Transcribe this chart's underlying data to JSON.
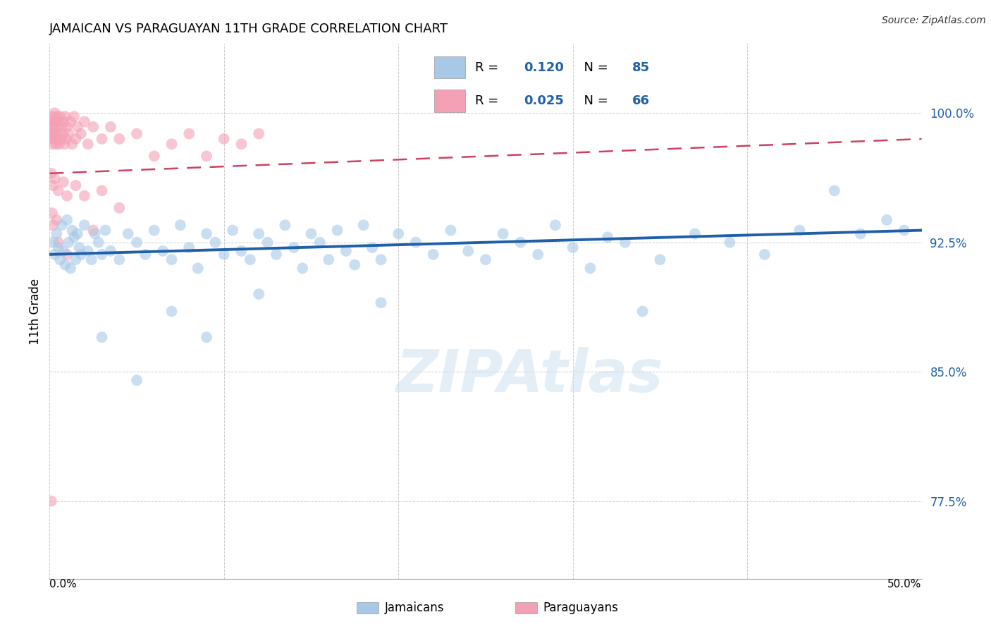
{
  "title": "JAMAICAN VS PARAGUAYAN 11TH GRADE CORRELATION CHART",
  "source": "Source: ZipAtlas.com",
  "ylabel": "11th Grade",
  "y_ticks": [
    77.5,
    85.0,
    92.5,
    100.0
  ],
  "y_tick_labels": [
    "77.5%",
    "85.0%",
    "92.5%",
    "100.0%"
  ],
  "xlim": [
    0.0,
    50.0
  ],
  "ylim": [
    73.0,
    104.0
  ],
  "jamaican_R": 0.12,
  "jamaican_N": 85,
  "paraguayan_R": 0.025,
  "paraguayan_N": 66,
  "jamaican_color": "#a8c8e8",
  "paraguayan_color": "#f4a0b5",
  "jamaican_line_color": "#2060a8",
  "paraguayan_line_color": "#d04060",
  "watermark": "ZIPAtlas",
  "jamaican_points": [
    [
      0.2,
      92.5
    ],
    [
      0.3,
      91.8
    ],
    [
      0.4,
      93.0
    ],
    [
      0.5,
      92.2
    ],
    [
      0.6,
      91.5
    ],
    [
      0.7,
      93.5
    ],
    [
      0.8,
      92.0
    ],
    [
      0.9,
      91.2
    ],
    [
      1.0,
      93.8
    ],
    [
      1.1,
      92.5
    ],
    [
      1.2,
      91.0
    ],
    [
      1.3,
      93.2
    ],
    [
      1.4,
      92.8
    ],
    [
      1.5,
      91.5
    ],
    [
      1.6,
      93.0
    ],
    [
      1.7,
      92.2
    ],
    [
      1.8,
      91.8
    ],
    [
      2.0,
      93.5
    ],
    [
      2.2,
      92.0
    ],
    [
      2.4,
      91.5
    ],
    [
      2.6,
      93.0
    ],
    [
      2.8,
      92.5
    ],
    [
      3.0,
      91.8
    ],
    [
      3.2,
      93.2
    ],
    [
      3.5,
      92.0
    ],
    [
      4.0,
      91.5
    ],
    [
      4.5,
      93.0
    ],
    [
      5.0,
      92.5
    ],
    [
      5.5,
      91.8
    ],
    [
      6.0,
      93.2
    ],
    [
      6.5,
      92.0
    ],
    [
      7.0,
      91.5
    ],
    [
      7.5,
      93.5
    ],
    [
      8.0,
      92.2
    ],
    [
      8.5,
      91.0
    ],
    [
      9.0,
      93.0
    ],
    [
      9.5,
      92.5
    ],
    [
      10.0,
      91.8
    ],
    [
      10.5,
      93.2
    ],
    [
      11.0,
      92.0
    ],
    [
      11.5,
      91.5
    ],
    [
      12.0,
      93.0
    ],
    [
      12.5,
      92.5
    ],
    [
      13.0,
      91.8
    ],
    [
      13.5,
      93.5
    ],
    [
      14.0,
      92.2
    ],
    [
      14.5,
      91.0
    ],
    [
      15.0,
      93.0
    ],
    [
      15.5,
      92.5
    ],
    [
      16.0,
      91.5
    ],
    [
      16.5,
      93.2
    ],
    [
      17.0,
      92.0
    ],
    [
      17.5,
      91.2
    ],
    [
      18.0,
      93.5
    ],
    [
      18.5,
      92.2
    ],
    [
      19.0,
      91.5
    ],
    [
      20.0,
      93.0
    ],
    [
      21.0,
      92.5
    ],
    [
      22.0,
      91.8
    ],
    [
      23.0,
      93.2
    ],
    [
      24.0,
      92.0
    ],
    [
      25.0,
      91.5
    ],
    [
      26.0,
      93.0
    ],
    [
      27.0,
      92.5
    ],
    [
      28.0,
      91.8
    ],
    [
      29.0,
      93.5
    ],
    [
      30.0,
      92.2
    ],
    [
      31.0,
      91.0
    ],
    [
      32.0,
      92.8
    ],
    [
      33.0,
      92.5
    ],
    [
      35.0,
      91.5
    ],
    [
      37.0,
      93.0
    ],
    [
      39.0,
      92.5
    ],
    [
      41.0,
      91.8
    ],
    [
      43.0,
      93.2
    ],
    [
      45.0,
      95.5
    ],
    [
      46.5,
      93.0
    ],
    [
      48.0,
      93.8
    ],
    [
      49.0,
      93.2
    ],
    [
      3.0,
      87.0
    ],
    [
      5.0,
      84.5
    ],
    [
      7.0,
      88.5
    ],
    [
      9.0,
      87.0
    ],
    [
      12.0,
      89.5
    ],
    [
      19.0,
      89.0
    ],
    [
      34.0,
      88.5
    ]
  ],
  "paraguayan_points": [
    [
      0.05,
      99.5
    ],
    [
      0.08,
      98.8
    ],
    [
      0.1,
      99.2
    ],
    [
      0.12,
      98.5
    ],
    [
      0.15,
      99.8
    ],
    [
      0.18,
      98.2
    ],
    [
      0.2,
      99.5
    ],
    [
      0.22,
      98.8
    ],
    [
      0.25,
      99.2
    ],
    [
      0.28,
      98.5
    ],
    [
      0.3,
      100.0
    ],
    [
      0.32,
      98.8
    ],
    [
      0.35,
      99.5
    ],
    [
      0.38,
      98.2
    ],
    [
      0.4,
      99.8
    ],
    [
      0.42,
      98.5
    ],
    [
      0.45,
      99.2
    ],
    [
      0.48,
      98.8
    ],
    [
      0.5,
      99.5
    ],
    [
      0.55,
      98.2
    ],
    [
      0.6,
      99.8
    ],
    [
      0.65,
      98.5
    ],
    [
      0.7,
      99.2
    ],
    [
      0.75,
      98.8
    ],
    [
      0.8,
      99.5
    ],
    [
      0.85,
      98.2
    ],
    [
      0.9,
      99.8
    ],
    [
      0.95,
      98.5
    ],
    [
      1.0,
      99.2
    ],
    [
      1.1,
      98.8
    ],
    [
      1.2,
      99.5
    ],
    [
      1.3,
      98.2
    ],
    [
      1.4,
      99.8
    ],
    [
      1.5,
      98.5
    ],
    [
      1.6,
      99.2
    ],
    [
      1.8,
      98.8
    ],
    [
      2.0,
      99.5
    ],
    [
      2.2,
      98.2
    ],
    [
      2.5,
      99.2
    ],
    [
      3.0,
      98.5
    ],
    [
      3.5,
      99.2
    ],
    [
      4.0,
      98.5
    ],
    [
      5.0,
      98.8
    ],
    [
      6.0,
      97.5
    ],
    [
      7.0,
      98.2
    ],
    [
      8.0,
      98.8
    ],
    [
      9.0,
      97.5
    ],
    [
      10.0,
      98.5
    ],
    [
      11.0,
      98.2
    ],
    [
      12.0,
      98.8
    ],
    [
      0.1,
      96.5
    ],
    [
      0.2,
      95.8
    ],
    [
      0.3,
      96.2
    ],
    [
      0.5,
      95.5
    ],
    [
      0.8,
      96.0
    ],
    [
      1.0,
      95.2
    ],
    [
      1.5,
      95.8
    ],
    [
      2.0,
      95.2
    ],
    [
      3.0,
      95.5
    ],
    [
      4.0,
      94.5
    ],
    [
      0.2,
      93.5
    ],
    [
      0.5,
      92.5
    ],
    [
      1.0,
      91.8
    ],
    [
      2.5,
      93.2
    ],
    [
      0.15,
      94.2
    ],
    [
      0.4,
      93.8
    ],
    [
      0.1,
      77.5
    ]
  ]
}
